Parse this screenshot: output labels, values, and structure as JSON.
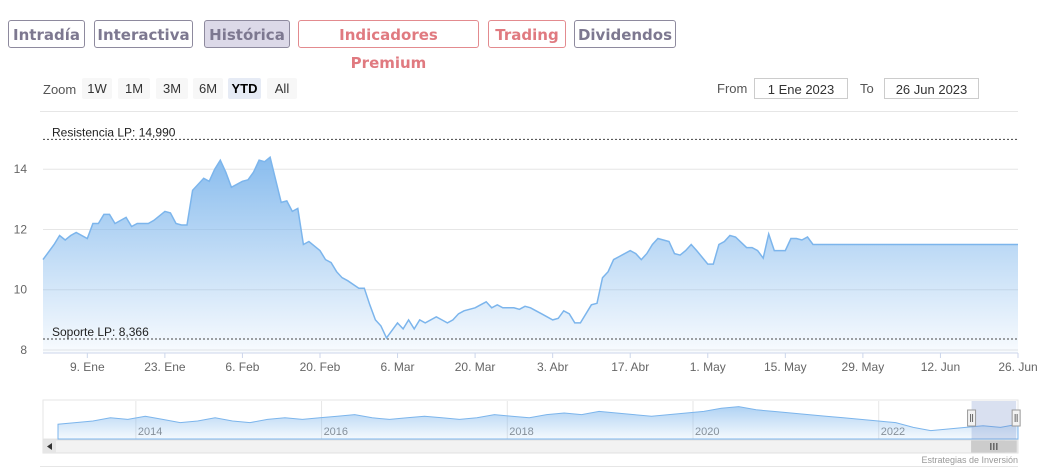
{
  "tabs": [
    {
      "label": "Intradía",
      "style": "gray"
    },
    {
      "label": "Interactiva",
      "style": "gray"
    },
    {
      "label": "Histórica",
      "style": "active"
    },
    {
      "label": "Indicadores Premium",
      "style": "red"
    },
    {
      "label": "Trading",
      "style": "red"
    },
    {
      "label": "Dividendos",
      "style": "gray"
    }
  ],
  "zoom": {
    "label": "Zoom",
    "buttons": [
      "1W",
      "1M",
      "3M",
      "6M",
      "YTD",
      "All"
    ],
    "active": "YTD"
  },
  "range": {
    "from_label": "From",
    "from_value": "1 Ene 2023",
    "to_label": "To",
    "to_value": "26 Jun 2023"
  },
  "credit": "Estrategias de Inversión",
  "colors": {
    "series": "#7cb5ec",
    "tab_gray": "#7d7890",
    "tab_red": "#e07a80",
    "active_tab_bg": "#dcd9e8"
  },
  "chart_data": {
    "type": "area",
    "ylim": [
      7.9,
      15.8
    ],
    "y_ticks": [
      8,
      10,
      12,
      14
    ],
    "x_tick_labels": [
      "9. Ene",
      "23. Ene",
      "6. Feb",
      "20. Feb",
      "6. Mar",
      "20. Mar",
      "3. Abr",
      "17. Abr",
      "1. May",
      "15. May",
      "29. May",
      "12. Jun",
      "26. Jun"
    ],
    "x_tick_days": [
      8,
      22,
      36,
      50,
      64,
      78,
      92,
      106,
      120,
      134,
      148,
      162,
      176
    ],
    "x_range_days": [
      0,
      176
    ],
    "annotations": [
      {
        "label": "Resistencia LP: 14,990",
        "value": 14.99
      },
      {
        "label": "Soporte LP: 8,366",
        "value": 8.366
      }
    ],
    "series": [
      {
        "x": [
          0,
          2,
          3,
          4,
          5,
          6,
          8,
          9,
          10,
          11,
          12,
          13,
          15,
          16,
          17,
          18,
          19,
          20,
          22,
          23,
          24,
          25,
          26,
          27,
          29,
          30,
          31,
          32,
          33,
          34,
          36,
          37,
          38,
          39,
          40,
          41,
          43,
          44,
          45,
          46,
          47,
          48,
          50,
          51,
          52,
          53,
          54,
          55,
          57,
          58,
          59,
          60,
          61,
          62,
          64,
          65,
          66,
          67,
          68,
          69,
          71,
          72,
          73,
          74,
          75,
          76,
          78,
          79,
          80,
          81,
          82,
          83,
          85,
          86,
          87,
          88,
          89,
          90,
          92,
          93,
          94,
          95,
          96,
          97,
          99,
          100,
          101,
          102,
          103,
          104,
          106,
          107,
          108,
          109,
          110,
          111,
          113,
          114,
          115,
          116,
          117,
          118,
          120,
          121,
          122,
          123,
          124,
          125,
          127,
          128,
          129,
          130,
          131,
          132,
          134,
          135,
          136,
          137,
          138,
          139,
          141,
          142,
          143,
          144,
          145,
          146,
          148,
          149,
          150,
          151,
          152,
          153,
          155,
          156,
          157,
          158,
          159,
          160,
          162,
          163,
          164,
          165,
          166,
          167,
          169,
          170,
          171,
          172,
          173,
          174,
          176
        ],
        "y": [
          11.0,
          11.5,
          11.8,
          11.65,
          11.8,
          11.9,
          11.7,
          12.2,
          12.2,
          12.5,
          12.5,
          12.2,
          12.4,
          12.1,
          12.2,
          12.2,
          12.2,
          12.3,
          12.6,
          12.55,
          12.2,
          12.15,
          12.15,
          13.3,
          13.7,
          13.6,
          14.0,
          14.3,
          13.9,
          13.4,
          13.6,
          13.65,
          13.9,
          14.3,
          14.25,
          14.4,
          12.9,
          12.95,
          12.6,
          12.7,
          11.5,
          11.6,
          11.3,
          11.0,
          10.9,
          10.6,
          10.4,
          10.3,
          10.05,
          10.05,
          9.5,
          9.0,
          8.8,
          8.4,
          8.9,
          8.7,
          9.0,
          8.7,
          9.0,
          8.9,
          9.1,
          9.0,
          8.9,
          9.0,
          9.2,
          9.3,
          9.4,
          9.5,
          9.6,
          9.4,
          9.5,
          9.4,
          9.4,
          9.35,
          9.45,
          9.4,
          9.3,
          9.2,
          9.0,
          9.05,
          9.3,
          9.2,
          8.9,
          8.9,
          9.5,
          9.55,
          10.4,
          10.6,
          11.0,
          11.1,
          11.3,
          11.2,
          11.0,
          11.2,
          11.5,
          11.7,
          11.6,
          11.2,
          11.15,
          11.3,
          11.5,
          11.3,
          10.85,
          10.85,
          11.5,
          11.6,
          11.8,
          11.75,
          11.4,
          11.4,
          11.3,
          11.05,
          11.85,
          11.3,
          11.3,
          11.7,
          11.7,
          11.65,
          11.75,
          11.5,
          11.5,
          11.5,
          11.5,
          11.5,
          11.5,
          11.5,
          11.5,
          11.5,
          11.5,
          11.5,
          11.5,
          11.5,
          11.5,
          11.5,
          11.5,
          11.5,
          11.5,
          11.5,
          11.5,
          11.5,
          11.5,
          11.5,
          11.5,
          11.5,
          11.5,
          11.5,
          11.5,
          11.5,
          11.5,
          11.5,
          11.5
        ]
      }
    ]
  },
  "navigator": {
    "year_labels": [
      "2014",
      "2016",
      "2018",
      "2020",
      "2022"
    ],
    "years": [
      2014,
      2016,
      2018,
      2020,
      2022
    ],
    "year_range": [
      2013,
      2023.5
    ],
    "selected_range": [
      2023.0,
      2023.48
    ],
    "series_y": [
      0.4,
      0.45,
      0.5,
      0.6,
      0.55,
      0.65,
      0.55,
      0.45,
      0.5,
      0.6,
      0.5,
      0.45,
      0.55,
      0.6,
      0.55,
      0.6,
      0.65,
      0.7,
      0.6,
      0.55,
      0.6,
      0.65,
      0.6,
      0.55,
      0.6,
      0.7,
      0.65,
      0.6,
      0.7,
      0.75,
      0.7,
      0.8,
      0.75,
      0.7,
      0.65,
      0.7,
      0.75,
      0.8,
      0.9,
      0.95,
      0.85,
      0.8,
      0.75,
      0.7,
      0.65,
      0.6,
      0.55,
      0.5,
      0.45,
      0.3,
      0.2,
      0.25,
      0.3,
      0.35,
      0.3,
      0.4
    ]
  }
}
